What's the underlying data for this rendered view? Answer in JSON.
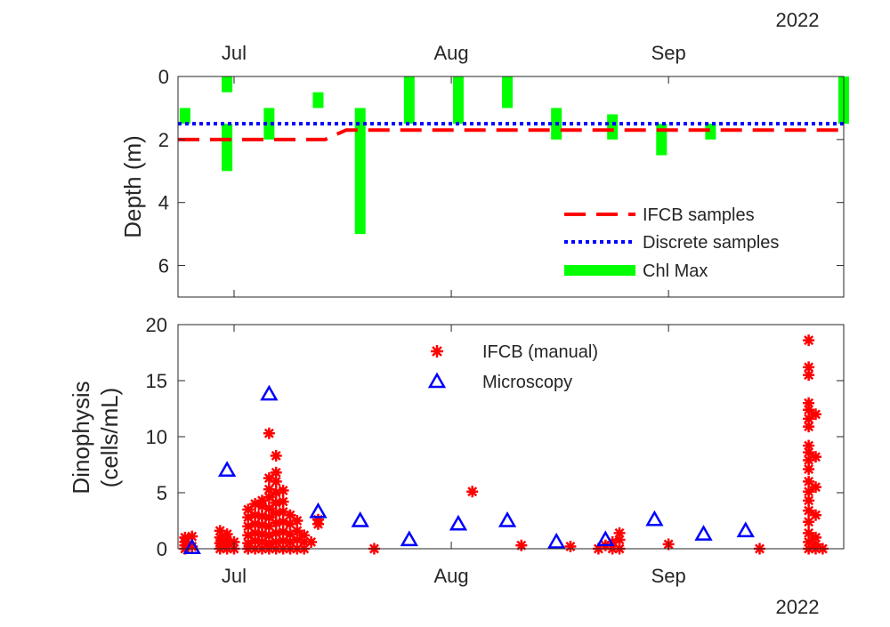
{
  "chart_data": [
    {
      "type": "line",
      "ylabel": "Depth (m)",
      "ylim": [
        7,
        0
      ],
      "y_direction": "reversed",
      "yticks": [
        0,
        2,
        4,
        6
      ],
      "x_axis_position": "top",
      "xlim": [
        "2022-06-23",
        "2022-09-26"
      ],
      "xticks": [
        {
          "date": "2022-07-01",
          "label": "Jul"
        },
        {
          "date": "2022-08-01",
          "label": "Aug"
        },
        {
          "date": "2022-09-01",
          "label": "Sep"
        }
      ],
      "year_label": "2022",
      "grid": false,
      "legend_position": "bottom-right",
      "series": [
        {
          "name": "IFCB samples",
          "style": "dashed",
          "color": "#ff0000",
          "points": [
            [
              "2022-06-23",
              2.0
            ],
            [
              "2022-07-14",
              2.0
            ],
            [
              "2022-07-17",
              1.7
            ],
            [
              "2022-09-26",
              1.7
            ]
          ]
        },
        {
          "name": "Discrete samples",
          "style": "dotted",
          "color": "#0000ff",
          "points": [
            [
              "2022-06-23",
              1.5
            ],
            [
              "2022-09-26",
              1.5
            ]
          ]
        }
      ],
      "chl_max": {
        "name": "Chl Max",
        "color": "#00ff00",
        "bars": [
          {
            "date": "2022-06-24",
            "top": 1.0,
            "bottom": 1.5
          },
          {
            "date": "2022-06-30",
            "top": 0.0,
            "bottom": 0.5
          },
          {
            "date": "2022-06-30",
            "top": 1.5,
            "bottom": 3.0
          },
          {
            "date": "2022-07-06",
            "top": 1.0,
            "bottom": 2.0
          },
          {
            "date": "2022-07-13",
            "top": 0.5,
            "bottom": 1.0
          },
          {
            "date": "2022-07-19",
            "top": 1.0,
            "bottom": 5.0
          },
          {
            "date": "2022-07-26",
            "top": 0.0,
            "bottom": 1.5
          },
          {
            "date": "2022-08-02",
            "top": 0.0,
            "bottom": 1.5
          },
          {
            "date": "2022-08-09",
            "top": 0.0,
            "bottom": 1.0
          },
          {
            "date": "2022-08-16",
            "top": 1.0,
            "bottom": 2.0
          },
          {
            "date": "2022-08-24",
            "top": 1.2,
            "bottom": 2.0
          },
          {
            "date": "2022-08-31",
            "top": 1.5,
            "bottom": 2.5
          },
          {
            "date": "2022-09-07",
            "top": 1.5,
            "bottom": 2.0
          },
          {
            "date": "2022-09-26",
            "top": 0.0,
            "bottom": 1.5
          }
        ]
      }
    },
    {
      "type": "scatter",
      "ylabel_lines": [
        "Dinophysis",
        "(cells/mL)"
      ],
      "ylim": [
        0,
        20
      ],
      "yticks": [
        0,
        5,
        10,
        15,
        20
      ],
      "xlim": [
        "2022-06-23",
        "2022-09-26"
      ],
      "xticks": [
        {
          "date": "2022-07-01",
          "label": "Jul"
        },
        {
          "date": "2022-08-01",
          "label": "Aug"
        },
        {
          "date": "2022-09-01",
          "label": "Sep"
        }
      ],
      "year_label": "2022",
      "grid": false,
      "legend_position": "top-center",
      "series": [
        {
          "name": "IFCB (manual)",
          "marker": "asterisk",
          "color": "#ff0000",
          "points": [
            [
              "2022-06-24",
              1.0
            ],
            [
              "2022-06-24",
              0.6
            ],
            [
              "2022-06-24",
              0.3
            ],
            [
              "2022-06-24",
              0.0
            ],
            [
              "2022-06-25",
              1.1
            ],
            [
              "2022-06-25",
              0.2
            ],
            [
              "2022-06-29",
              1.6
            ],
            [
              "2022-06-29",
              1.0
            ],
            [
              "2022-06-29",
              0.5
            ],
            [
              "2022-06-29",
              0.0
            ],
            [
              "2022-06-30",
              1.3
            ],
            [
              "2022-06-30",
              0.8
            ],
            [
              "2022-06-30",
              0.3
            ],
            [
              "2022-06-30",
              0.0
            ],
            [
              "2022-07-01",
              0.6
            ],
            [
              "2022-07-01",
              0.0
            ],
            [
              "2022-07-03",
              0.0
            ],
            [
              "2022-07-03",
              0.5
            ],
            [
              "2022-07-03",
              1.2
            ],
            [
              "2022-07-03",
              2.0
            ],
            [
              "2022-07-03",
              2.8
            ],
            [
              "2022-07-03",
              3.5
            ],
            [
              "2022-07-04",
              0.0
            ],
            [
              "2022-07-04",
              0.7
            ],
            [
              "2022-07-04",
              1.4
            ],
            [
              "2022-07-04",
              2.2
            ],
            [
              "2022-07-04",
              3.0
            ],
            [
              "2022-07-04",
              4.0
            ],
            [
              "2022-07-05",
              0.0
            ],
            [
              "2022-07-05",
              0.6
            ],
            [
              "2022-07-05",
              1.3
            ],
            [
              "2022-07-05",
              2.1
            ],
            [
              "2022-07-05",
              2.9
            ],
            [
              "2022-07-05",
              3.8
            ],
            [
              "2022-07-05",
              4.3
            ],
            [
              "2022-07-06",
              0.0
            ],
            [
              "2022-07-06",
              0.5
            ],
            [
              "2022-07-06",
              1.2
            ],
            [
              "2022-07-06",
              2.0
            ],
            [
              "2022-07-06",
              2.8
            ],
            [
              "2022-07-06",
              3.6
            ],
            [
              "2022-07-06",
              4.6
            ],
            [
              "2022-07-06",
              5.3
            ],
            [
              "2022-07-06",
              6.3
            ],
            [
              "2022-07-06",
              10.3
            ],
            [
              "2022-07-07",
              0.0
            ],
            [
              "2022-07-07",
              0.6
            ],
            [
              "2022-07-07",
              1.4
            ],
            [
              "2022-07-07",
              2.3
            ],
            [
              "2022-07-07",
              3.2
            ],
            [
              "2022-07-07",
              4.1
            ],
            [
              "2022-07-07",
              5.0
            ],
            [
              "2022-07-07",
              6.0
            ],
            [
              "2022-07-07",
              6.8
            ],
            [
              "2022-07-07",
              8.3
            ],
            [
              "2022-07-08",
              0.0
            ],
            [
              "2022-07-08",
              0.7
            ],
            [
              "2022-07-08",
              1.5
            ],
            [
              "2022-07-08",
              2.4
            ],
            [
              "2022-07-08",
              3.3
            ],
            [
              "2022-07-08",
              4.2
            ],
            [
              "2022-07-08",
              5.2
            ],
            [
              "2022-07-09",
              0.0
            ],
            [
              "2022-07-09",
              0.6
            ],
            [
              "2022-07-09",
              1.3
            ],
            [
              "2022-07-09",
              2.2
            ],
            [
              "2022-07-09",
              3.0
            ],
            [
              "2022-07-10",
              0.0
            ],
            [
              "2022-07-10",
              0.8
            ],
            [
              "2022-07-10",
              1.6
            ],
            [
              "2022-07-10",
              2.5
            ],
            [
              "2022-07-11",
              0.0
            ],
            [
              "2022-07-11",
              0.6
            ],
            [
              "2022-07-11",
              1.2
            ],
            [
              "2022-07-12",
              0.6
            ],
            [
              "2022-07-13",
              2.2
            ],
            [
              "2022-07-13",
              2.6
            ],
            [
              "2022-07-21",
              0.0
            ],
            [
              "2022-08-04",
              5.1
            ],
            [
              "2022-08-11",
              0.3
            ],
            [
              "2022-08-18",
              0.2
            ],
            [
              "2022-08-22",
              0.0
            ],
            [
              "2022-08-23",
              0.3
            ],
            [
              "2022-08-24",
              0.0
            ],
            [
              "2022-08-24",
              0.6
            ],
            [
              "2022-08-25",
              1.4
            ],
            [
              "2022-08-25",
              0.8
            ],
            [
              "2022-08-25",
              0.0
            ],
            [
              "2022-09-01",
              0.4
            ],
            [
              "2022-09-14",
              0.0
            ],
            [
              "2022-09-21",
              0.0
            ],
            [
              "2022-09-21",
              0.6
            ],
            [
              "2022-09-21",
              1.4
            ],
            [
              "2022-09-21",
              2.4
            ],
            [
              "2022-09-21",
              3.4
            ],
            [
              "2022-09-21",
              4.3
            ],
            [
              "2022-09-21",
              5.1
            ],
            [
              "2022-09-21",
              6.0
            ],
            [
              "2022-09-21",
              7.1
            ],
            [
              "2022-09-21",
              7.9
            ],
            [
              "2022-09-21",
              8.6
            ],
            [
              "2022-09-21",
              9.2
            ],
            [
              "2022-09-21",
              10.9
            ],
            [
              "2022-09-21",
              11.6
            ],
            [
              "2022-09-21",
              12.4
            ],
            [
              "2022-09-21",
              13.0
            ],
            [
              "2022-09-21",
              15.5
            ],
            [
              "2022-09-21",
              16.2
            ],
            [
              "2022-09-21",
              18.6
            ],
            [
              "2022-09-22",
              0.0
            ],
            [
              "2022-09-22",
              0.4
            ],
            [
              "2022-09-22",
              1.0
            ],
            [
              "2022-09-22",
              3.0
            ],
            [
              "2022-09-22",
              5.5
            ],
            [
              "2022-09-22",
              8.2
            ],
            [
              "2022-09-22",
              12.0
            ],
            [
              "2022-09-23",
              0.0
            ]
          ]
        },
        {
          "name": "Microscopy",
          "marker": "triangle",
          "color": "#0000ff",
          "points": [
            [
              "2022-06-25",
              0.1
            ],
            [
              "2022-06-30",
              7.0
            ],
            [
              "2022-07-06",
              13.8
            ],
            [
              "2022-07-13",
              3.3
            ],
            [
              "2022-07-19",
              2.5
            ],
            [
              "2022-07-26",
              0.8
            ],
            [
              "2022-08-02",
              2.2
            ],
            [
              "2022-08-09",
              2.5
            ],
            [
              "2022-08-16",
              0.6
            ],
            [
              "2022-08-23",
              0.8
            ],
            [
              "2022-08-30",
              2.6
            ],
            [
              "2022-09-06",
              1.3
            ],
            [
              "2022-09-12",
              1.6
            ]
          ]
        }
      ]
    }
  ]
}
